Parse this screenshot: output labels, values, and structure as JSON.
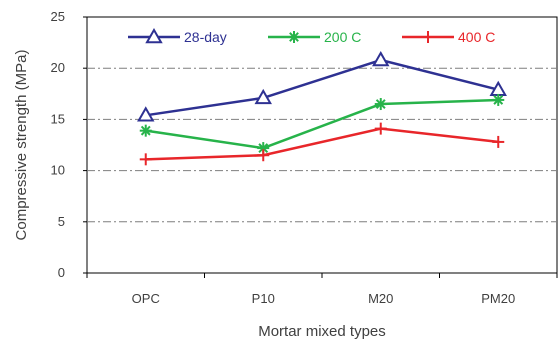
{
  "chart_data": {
    "type": "line",
    "categories": [
      "OPC",
      "P10",
      "M20",
      "PM20"
    ],
    "series": [
      {
        "name": "28-day",
        "values": [
          15.4,
          17.1,
          20.8,
          17.9
        ],
        "color": "#2e3192",
        "marker": "triangle-open"
      },
      {
        "name": "200 C",
        "values": [
          13.9,
          12.2,
          16.5,
          16.9
        ],
        "color": "#27b34a",
        "marker": "asterisk"
      },
      {
        "name": "400 C",
        "values": [
          11.1,
          11.5,
          14.1,
          12.8
        ],
        "color": "#e8262a",
        "marker": "plus"
      }
    ],
    "xlabel": "Mortar mixed types",
    "ylabel": "Compressive strength (MPa)",
    "ylim": [
      0,
      25
    ],
    "yticks": [
      0,
      5,
      10,
      15,
      20,
      25
    ],
    "grid": "horizontal dash-dot",
    "legend_position": "top inside"
  }
}
